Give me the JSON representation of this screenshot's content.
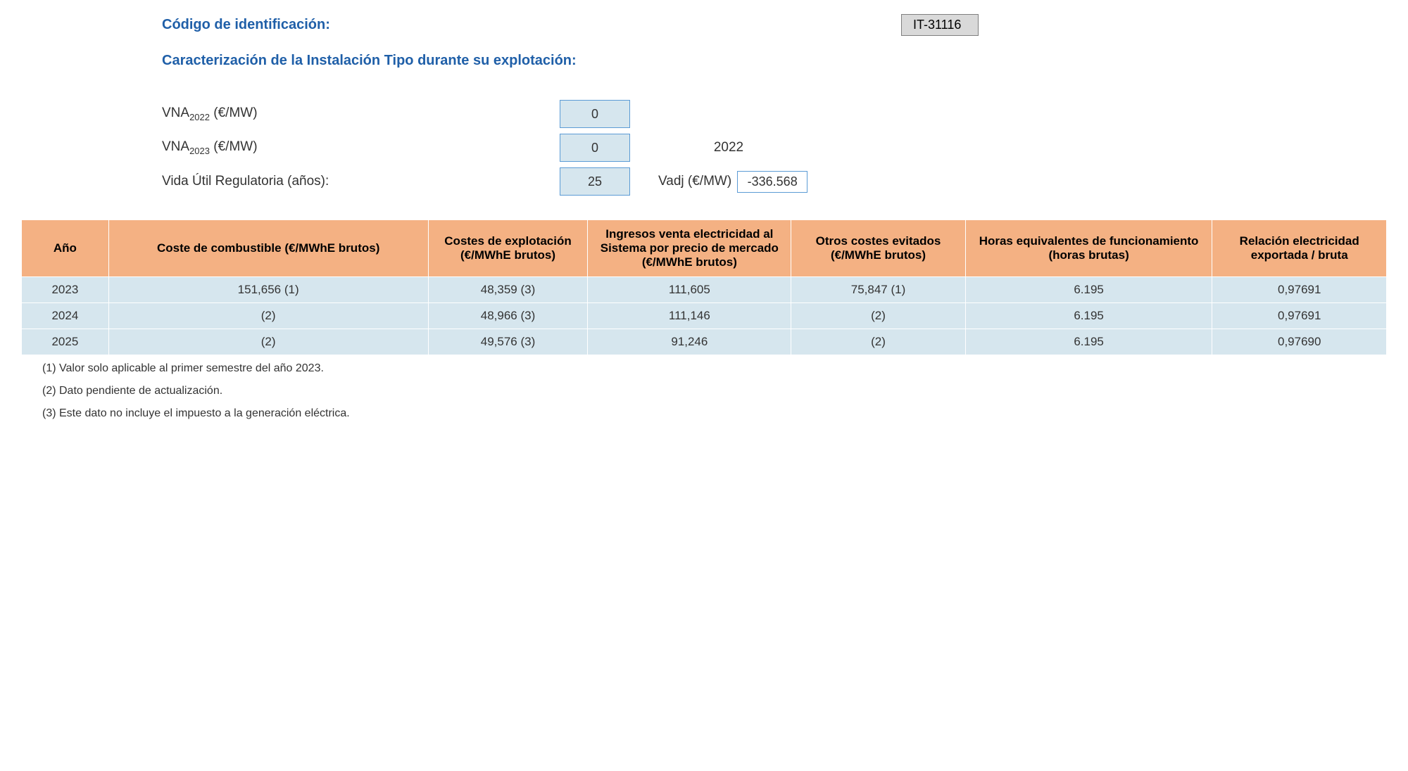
{
  "header": {
    "code_label": "Código de identificación:",
    "code_value": "IT-31116",
    "section_title": "Caracterización de la Instalación Tipo durante su explotación:"
  },
  "params": {
    "vna2022_label_pre": "VNA",
    "vna2022_label_sub": "2022",
    "vna2022_label_post": " (€/MW)",
    "vna2022_value": "0",
    "vna2023_label_pre": "VNA",
    "vna2023_label_sub": "2023",
    "vna2023_label_post": " (€/MW)",
    "vna2023_value": "0",
    "vida_label": "Vida Útil Regulatoria (años):",
    "vida_value": "25",
    "right_year": "2022",
    "vadj_label": "Vadj (€/MW)",
    "vadj_value": "-336.568"
  },
  "table": {
    "columns": [
      "Año",
      "Coste de combustible (€/MWhE brutos)",
      "Costes de explotación (€/MWhE brutos)",
      "Ingresos venta electricidad al Sistema por precio de mercado (€/MWhE brutos)",
      "Otros costes evitados (€/MWhE brutos)",
      "Horas equivalentes de funcionamiento (horas brutas)",
      "Relación electricidad exportada / bruta"
    ],
    "rows": [
      [
        "2023",
        "151,656 (1)",
        "48,359 (3)",
        "111,605",
        "75,847 (1)",
        "6.195",
        "0,97691"
      ],
      [
        "2024",
        "(2)",
        "48,966 (3)",
        "111,146",
        "(2)",
        "6.195",
        "0,97691"
      ],
      [
        "2025",
        "(2)",
        "49,576 (3)",
        "91,246",
        "(2)",
        "6.195",
        "0,97690"
      ]
    ],
    "header_bg": "#f4b183",
    "cell_bg": "#d6e6ee",
    "border_color": "#ffffff"
  },
  "footnotes": [
    "(1) Valor solo aplicable al primer semestre del año 2023.",
    "(2) Dato pendiente de actualización.",
    "(3) Este dato no incluye el impuesto a la generación eléctrica."
  ]
}
